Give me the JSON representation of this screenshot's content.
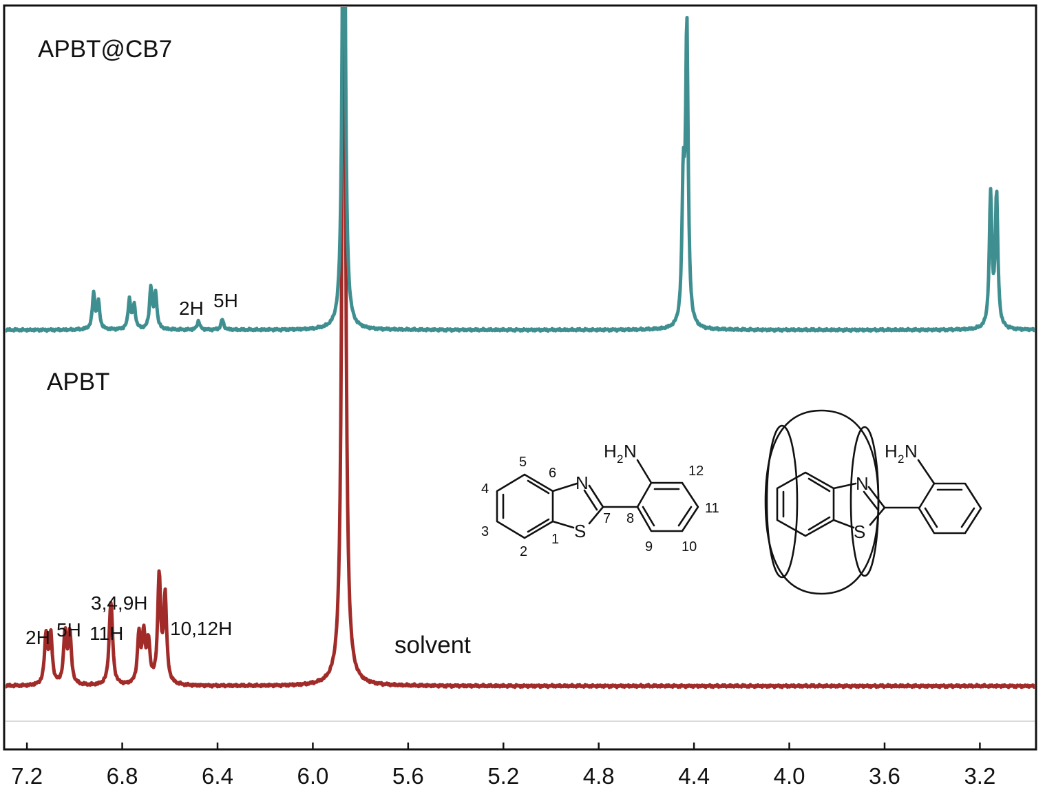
{
  "chart_data": {
    "type": "line",
    "title": "",
    "xlabel": "",
    "ylabel": "",
    "x_axis": {
      "reversed": true,
      "xlim": [
        7.29,
        2.97
      ],
      "ticks": [
        7.2,
        6.8,
        6.4,
        6.0,
        5.6,
        5.2,
        4.8,
        4.4,
        4.0,
        3.6,
        3.2
      ],
      "tick_labels": [
        "7.2",
        "6.8",
        "6.4",
        "6.0",
        "5.6",
        "5.2",
        "4.8",
        "4.4",
        "4.0",
        "3.6",
        "3.2"
      ]
    },
    "grid": false,
    "legend": "none",
    "series": [
      {
        "name": "APBT@CB7",
        "color": "#3f8f91",
        "peaks": [
          {
            "ppm": 6.92,
            "height": 0.12
          },
          {
            "ppm": 6.9,
            "height": 0.09
          },
          {
            "ppm": 6.77,
            "height": 0.1
          },
          {
            "ppm": 6.75,
            "height": 0.08
          },
          {
            "ppm": 6.68,
            "height": 0.14
          },
          {
            "ppm": 6.66,
            "height": 0.12
          },
          {
            "ppm": 6.48,
            "height": 0.03
          },
          {
            "ppm": 6.38,
            "height": 0.035
          },
          {
            "ppm": 5.87,
            "height": 2.2
          },
          {
            "ppm": 4.445,
            "height": 0.45
          },
          {
            "ppm": 4.43,
            "height": 1.0
          },
          {
            "ppm": 3.155,
            "height": 0.45
          },
          {
            "ppm": 3.13,
            "height": 0.45
          }
        ]
      },
      {
        "name": "APBT",
        "color": "#a02b28",
        "peaks": [
          {
            "ppm": 7.12,
            "height": 0.19
          },
          {
            "ppm": 7.1,
            "height": 0.19
          },
          {
            "ppm": 7.04,
            "height": 0.2
          },
          {
            "ppm": 7.02,
            "height": 0.2
          },
          {
            "ppm": 6.85,
            "height": 0.19
          },
          {
            "ppm": 6.845,
            "height": 0.17
          },
          {
            "ppm": 6.73,
            "height": 0.19
          },
          {
            "ppm": 6.71,
            "height": 0.19
          },
          {
            "ppm": 6.69,
            "height": 0.16
          },
          {
            "ppm": 6.645,
            "height": 0.42
          },
          {
            "ppm": 6.62,
            "height": 0.34
          },
          {
            "ppm": 5.87,
            "height": 4.0
          }
        ]
      }
    ],
    "annotations": {
      "top_trace_title": "APBT@CB7",
      "bottom_trace_title": "APBT",
      "solvent": "solvent",
      "top_2h": "2H",
      "top_5h": "5H",
      "bot_2h": "2H",
      "bot_5h": "5H",
      "bot_11h": "11H",
      "bot_349h": "3,4,9H",
      "bot_1012h": "10,12H"
    }
  },
  "molecule_apbt": {
    "atom_n": "N",
    "atom_s": "S",
    "amine_h": "H",
    "amine_sub": "2",
    "amine_n": "N",
    "numbers": [
      "1",
      "2",
      "3",
      "4",
      "5",
      "6",
      "7",
      "8",
      "9",
      "10",
      "11",
      "12"
    ]
  },
  "molecule_complex": {
    "atom_n": "N",
    "atom_s": "S",
    "amine_h": "H",
    "amine_sub": "2",
    "amine_n": "N"
  }
}
